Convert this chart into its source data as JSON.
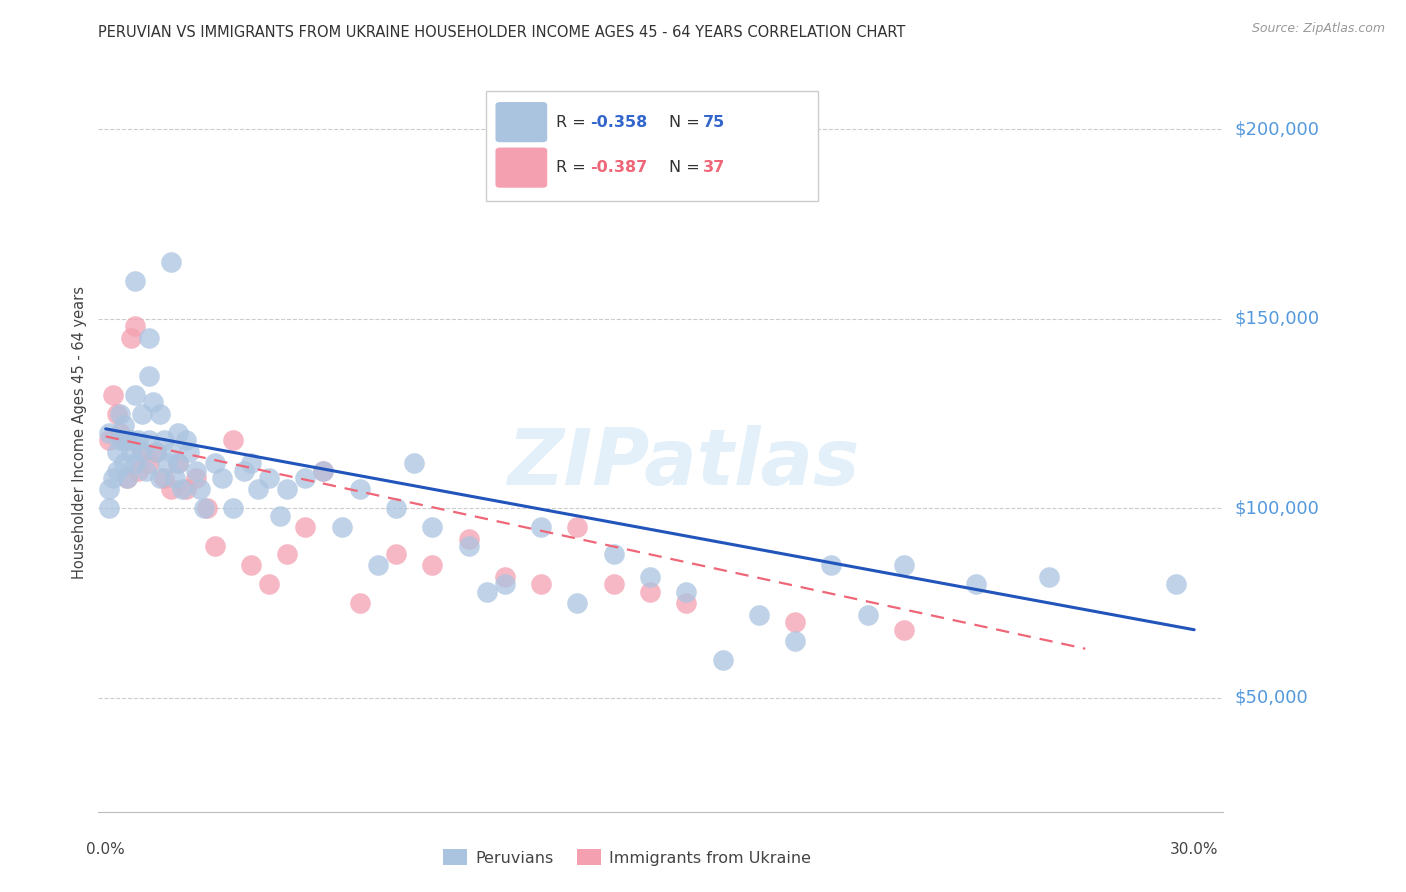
{
  "title": "PERUVIAN VS IMMIGRANTS FROM UKRAINE HOUSEHOLDER INCOME AGES 45 - 64 YEARS CORRELATION CHART",
  "source": "Source: ZipAtlas.com",
  "ylabel": "Householder Income Ages 45 - 64 years",
  "ytick_vals": [
    50000,
    100000,
    150000,
    200000
  ],
  "ytick_labels": [
    "$50,000",
    "$100,000",
    "$150,000",
    "$200,000"
  ],
  "ylim": [
    20000,
    220000
  ],
  "xlim": [
    -0.002,
    0.308
  ],
  "legend_blue_r_val": "-0.358",
  "legend_blue_n_val": "75",
  "legend_pink_r_val": "-0.387",
  "legend_pink_n_val": "37",
  "legend_label_blue": "Peruvians",
  "legend_label_pink": "Immigrants from Ukraine",
  "blue_color": "#aac4e0",
  "pink_color": "#f4a0b0",
  "line_blue_color": "#2255bb",
  "line_pink_color": "#ee6677",
  "watermark": "ZIPatlas",
  "blue_scatter_x": [
    0.001,
    0.001,
    0.002,
    0.003,
    0.003,
    0.004,
    0.004,
    0.005,
    0.005,
    0.006,
    0.006,
    0.007,
    0.007,
    0.008,
    0.008,
    0.009,
    0.01,
    0.01,
    0.011,
    0.012,
    0.012,
    0.013,
    0.014,
    0.015,
    0.015,
    0.016,
    0.017,
    0.018,
    0.019,
    0.02,
    0.02,
    0.021,
    0.022,
    0.023,
    0.025,
    0.026,
    0.027,
    0.03,
    0.032,
    0.035,
    0.038,
    0.04,
    0.042,
    0.045,
    0.048,
    0.05,
    0.055,
    0.06,
    0.065,
    0.07,
    0.075,
    0.08,
    0.085,
    0.09,
    0.1,
    0.105,
    0.11,
    0.12,
    0.13,
    0.14,
    0.15,
    0.16,
    0.17,
    0.18,
    0.19,
    0.2,
    0.21,
    0.22,
    0.24,
    0.26,
    0.001,
    0.008,
    0.012,
    0.018,
    0.295
  ],
  "blue_scatter_y": [
    120000,
    105000,
    108000,
    115000,
    110000,
    118000,
    125000,
    112000,
    122000,
    108000,
    118000,
    115000,
    118000,
    130000,
    112000,
    118000,
    115000,
    125000,
    110000,
    135000,
    118000,
    128000,
    115000,
    125000,
    108000,
    118000,
    112000,
    115000,
    108000,
    120000,
    112000,
    105000,
    118000,
    115000,
    110000,
    105000,
    100000,
    112000,
    108000,
    100000,
    110000,
    112000,
    105000,
    108000,
    98000,
    105000,
    108000,
    110000,
    95000,
    105000,
    85000,
    100000,
    112000,
    95000,
    90000,
    78000,
    80000,
    95000,
    75000,
    88000,
    82000,
    78000,
    60000,
    72000,
    65000,
    85000,
    72000,
    85000,
    80000,
    82000,
    100000,
    160000,
    145000,
    165000,
    80000
  ],
  "pink_scatter_x": [
    0.001,
    0.002,
    0.003,
    0.004,
    0.005,
    0.006,
    0.007,
    0.008,
    0.009,
    0.01,
    0.012,
    0.014,
    0.016,
    0.018,
    0.02,
    0.022,
    0.025,
    0.028,
    0.03,
    0.035,
    0.04,
    0.045,
    0.05,
    0.055,
    0.06,
    0.07,
    0.08,
    0.09,
    0.1,
    0.11,
    0.12,
    0.13,
    0.14,
    0.15,
    0.16,
    0.19,
    0.22
  ],
  "pink_scatter_y": [
    118000,
    130000,
    125000,
    120000,
    118000,
    108000,
    145000,
    148000,
    110000,
    115000,
    112000,
    115000,
    108000,
    105000,
    112000,
    105000,
    108000,
    100000,
    90000,
    118000,
    85000,
    80000,
    88000,
    95000,
    110000,
    75000,
    88000,
    85000,
    92000,
    82000,
    80000,
    95000,
    80000,
    78000,
    75000,
    70000,
    68000
  ],
  "blue_line_x0": 0.0,
  "blue_line_x1": 0.3,
  "blue_line_y0": 121000,
  "blue_line_y1": 68000,
  "pink_line_x0": 0.0,
  "pink_line_x1": 0.27,
  "pink_line_y0": 119000,
  "pink_line_y1": 63000
}
